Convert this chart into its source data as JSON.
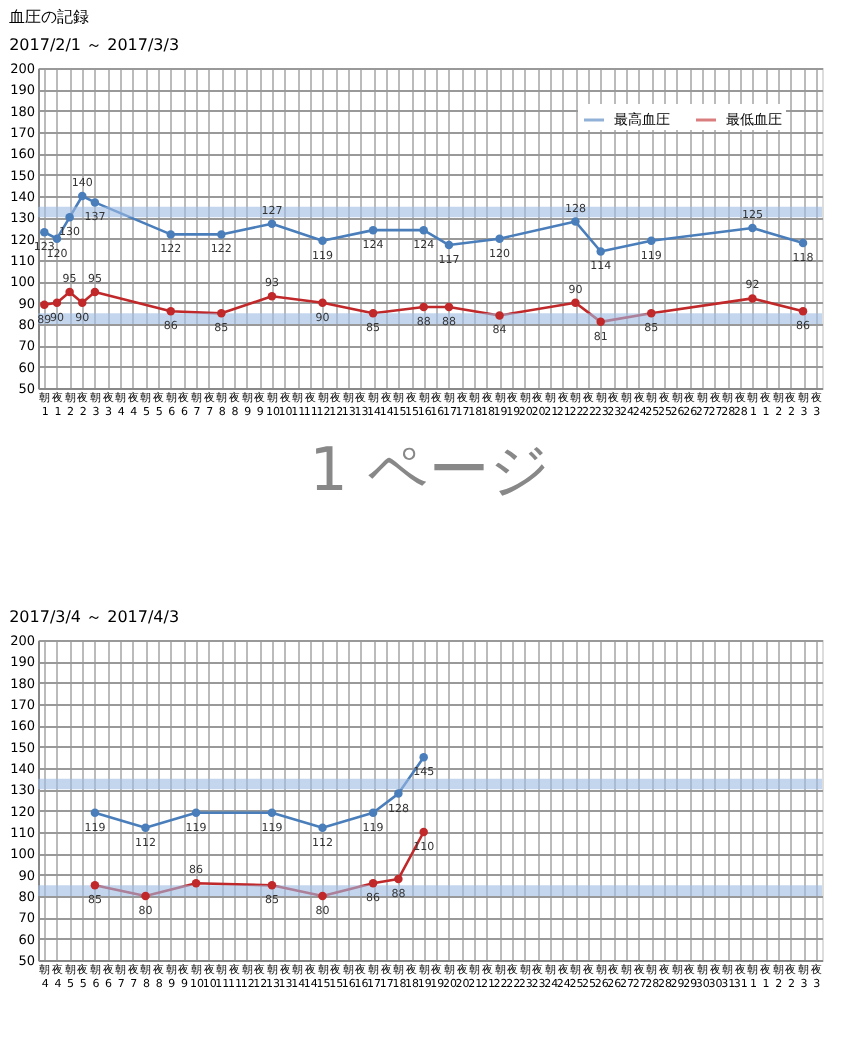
{
  "chart_data": [
    {
      "type": "line",
      "title": "血圧の記録",
      "subtitle": "2017/2/1 ～ 2017/3/3",
      "categories": [
        "朝\n1",
        "夜\n1",
        "朝\n2",
        "夜\n2",
        "朝\n3",
        "夜\n3",
        "朝\n4",
        "夜\n4",
        "朝\n5",
        "夜\n5",
        "朝\n6",
        "夜\n6",
        "朝\n7",
        "夜\n7",
        "朝\n8",
        "夜\n8",
        "朝\n9",
        "夜\n9",
        "朝\n10",
        "夜\n10",
        "朝\n11",
        "夜\n11",
        "朝\n12",
        "夜\n12",
        "朝\n13",
        "夜\n13",
        "朝\n14",
        "夜\n14",
        "朝\n15",
        "夜\n15",
        "朝\n16",
        "夜\n16",
        "朝\n17",
        "夜\n17",
        "朝\n18",
        "夜\n18",
        "朝\n19",
        "夜\n19",
        "朝\n20",
        "夜\n20",
        "朝\n21",
        "夜\n21",
        "朝\n22",
        "夜\n22",
        "朝\n23",
        "夜\n23",
        "朝\n24",
        "夜\n24",
        "朝\n25",
        "夜\n25",
        "朝\n26",
        "夜\n26",
        "朝\n27",
        "夜\n27",
        "朝\n28",
        "夜\n28",
        "朝\n1",
        "夜\n1",
        "朝\n2",
        "夜\n2",
        "朝\n3",
        "夜\n3"
      ],
      "series": [
        {
          "name": "最高血圧",
          "color": "#4a7ebb",
          "values": [
            123,
            120,
            130,
            140,
            137,
            null,
            null,
            null,
            null,
            null,
            122,
            null,
            null,
            null,
            122,
            null,
            null,
            null,
            127,
            null,
            null,
            null,
            119,
            null,
            null,
            null,
            124,
            null,
            null,
            null,
            124,
            null,
            117,
            null,
            null,
            null,
            120,
            null,
            null,
            null,
            null,
            null,
            128,
            null,
            114,
            null,
            null,
            null,
            119,
            null,
            null,
            null,
            null,
            null,
            null,
            null,
            125,
            null,
            null,
            null,
            118,
            null
          ]
        },
        {
          "name": "最低血圧",
          "color": "#c0282a",
          "values": [
            89,
            90,
            95,
            90,
            95,
            null,
            null,
            null,
            null,
            null,
            86,
            null,
            null,
            null,
            85,
            null,
            null,
            null,
            93,
            null,
            null,
            null,
            90,
            null,
            null,
            null,
            85,
            null,
            null,
            null,
            88,
            null,
            88,
            null,
            null,
            null,
            84,
            null,
            null,
            null,
            null,
            null,
            90,
            null,
            81,
            null,
            null,
            null,
            85,
            null,
            null,
            null,
            null,
            null,
            null,
            null,
            92,
            null,
            null,
            null,
            86,
            null
          ]
        }
      ],
      "ylim": [
        50,
        200
      ],
      "yticks": [
        50,
        60,
        70,
        80,
        90,
        100,
        110,
        120,
        130,
        140,
        150,
        160,
        170,
        180,
        190,
        200
      ],
      "bands": [
        {
          "axis": "y",
          "from": 130,
          "to": 135,
          "color": "#9dbbe3"
        },
        {
          "axis": "y",
          "from": 80,
          "to": 85,
          "color": "#9dbbe3"
        }
      ],
      "grid": true,
      "legend": "top right",
      "marker": "circle",
      "line_style": "solid",
      "data_labels": true,
      "annotations": [
        "1 ページ"
      ]
    },
    {
      "type": "line",
      "subtitle": "2017/3/4 ～ 2017/4/3",
      "categories": [
        "朝\n4",
        "夜\n4",
        "朝\n5",
        "夜\n5",
        "朝\n6",
        "夜\n6",
        "朝\n7",
        "夜\n7",
        "朝\n8",
        "夜\n8",
        "朝\n9",
        "夜\n9",
        "朝\n10",
        "夜\n10",
        "朝\n11",
        "夜\n11",
        "朝\n12",
        "夜\n12",
        "朝\n13",
        "夜\n13",
        "朝\n14",
        "夜\n14",
        "朝\n15",
        "夜\n15",
        "朝\n16",
        "夜\n16",
        "朝\n17",
        "夜\n17",
        "朝\n18",
        "夜\n18",
        "朝\n19",
        "夜\n19",
        "朝\n20",
        "夜\n20",
        "朝\n21",
        "夜\n21",
        "朝\n22",
        "夜\n22",
        "朝\n23",
        "夜\n23",
        "朝\n24",
        "夜\n24",
        "朝\n25",
        "夜\n25",
        "朝\n26",
        "夜\n26",
        "朝\n27",
        "夜\n27",
        "朝\n28",
        "夜\n28",
        "朝\n29",
        "夜\n29",
        "朝\n30",
        "夜\n30",
        "朝\n31",
        "夜\n31",
        "朝\n1",
        "夜\n1",
        "朝\n2",
        "夜\n2",
        "朝\n3",
        "夜\n3"
      ],
      "series": [
        {
          "name": "最高血圧",
          "color": "#4a7ebb",
          "values": [
            null,
            null,
            null,
            null,
            119,
            null,
            null,
            null,
            112,
            null,
            null,
            null,
            119,
            null,
            null,
            null,
            null,
            null,
            119,
            null,
            null,
            null,
            112,
            null,
            null,
            null,
            119,
            null,
            128,
            null,
            145,
            null,
            null,
            null,
            null,
            null,
            null,
            null,
            null,
            null,
            null,
            null,
            null,
            null,
            null,
            null,
            null,
            null,
            null,
            null,
            null,
            null,
            null,
            null,
            null,
            null,
            null,
            null,
            null,
            null,
            null,
            null
          ]
        },
        {
          "name": "最低血圧",
          "color": "#c0282a",
          "values": [
            null,
            null,
            null,
            null,
            85,
            null,
            null,
            null,
            80,
            null,
            null,
            null,
            86,
            null,
            null,
            null,
            null,
            null,
            85,
            null,
            null,
            null,
            80,
            null,
            null,
            null,
            86,
            null,
            88,
            null,
            110,
            null,
            null,
            null,
            null,
            null,
            null,
            null,
            null,
            null,
            null,
            null,
            null,
            null,
            null,
            null,
            null,
            null,
            null,
            null,
            null,
            null,
            null,
            null,
            null,
            null,
            null,
            null,
            null,
            null,
            null,
            null
          ]
        }
      ],
      "ylim": [
        50,
        200
      ],
      "yticks": [
        50,
        60,
        70,
        80,
        90,
        100,
        110,
        120,
        130,
        140,
        150,
        160,
        170,
        180,
        190,
        200
      ],
      "bands": [
        {
          "axis": "y",
          "from": 130,
          "to": 135,
          "color": "#9dbbe3"
        },
        {
          "axis": "y",
          "from": 80,
          "to": 85,
          "color": "#9dbbe3"
        }
      ],
      "grid": true,
      "legend": "top right",
      "marker": "circle",
      "line_style": "solid",
      "data_labels": true
    }
  ]
}
